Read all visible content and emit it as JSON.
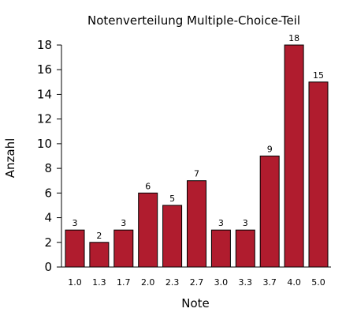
{
  "chart_data": {
    "type": "bar",
    "title": "Notenverteilung Multiple-Choice-Teil",
    "xlabel": "Note",
    "ylabel": "Anzahl",
    "categories": [
      "1.0",
      "1.3",
      "1.7",
      "2.0",
      "2.3",
      "2.7",
      "3.0",
      "3.3",
      "3.7",
      "4.0",
      "5.0"
    ],
    "values": [
      3,
      2,
      3,
      6,
      5,
      7,
      3,
      3,
      9,
      18,
      15
    ],
    "data_labels": [
      "3",
      "2",
      "3",
      "6",
      "5",
      "7",
      "3",
      "3",
      "9",
      "18",
      "15"
    ],
    "ylim": [
      0,
      18
    ],
    "yticks": [
      "0",
      "2",
      "4",
      "6",
      "8",
      "10",
      "12",
      "14",
      "16",
      "18"
    ],
    "grid": false,
    "bar_color": "#b01c2e",
    "bar_edge_color": "#000000"
  }
}
